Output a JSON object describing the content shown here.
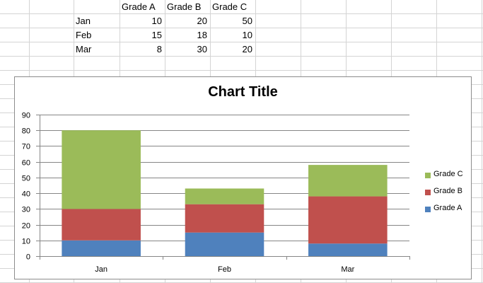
{
  "sheet": {
    "headers": [
      "Grade A",
      "Grade B",
      "Grade C"
    ],
    "rows": [
      {
        "label": "Jan",
        "values": [
          "10",
          "20",
          "50"
        ]
      },
      {
        "label": "Feb",
        "values": [
          "15",
          "18",
          "10"
        ]
      },
      {
        "label": "Mar",
        "values": [
          "8",
          "30",
          "20"
        ]
      }
    ]
  },
  "chart_data": {
    "type": "bar",
    "stacked": true,
    "title": "Chart Title",
    "categories": [
      "Jan",
      "Feb",
      "Mar"
    ],
    "series": [
      {
        "name": "Grade A",
        "values": [
          10,
          15,
          8
        ],
        "color": "#4f81bd"
      },
      {
        "name": "Grade B",
        "values": [
          20,
          18,
          30
        ],
        "color": "#c0504d"
      },
      {
        "name": "Grade C",
        "values": [
          50,
          10,
          20
        ],
        "color": "#9bbb59"
      }
    ],
    "ylim": [
      0,
      90
    ],
    "yticks": [
      "0",
      "10",
      "20",
      "30",
      "40",
      "50",
      "60",
      "70",
      "80",
      "90"
    ],
    "grid": true,
    "legend_position": "right"
  }
}
